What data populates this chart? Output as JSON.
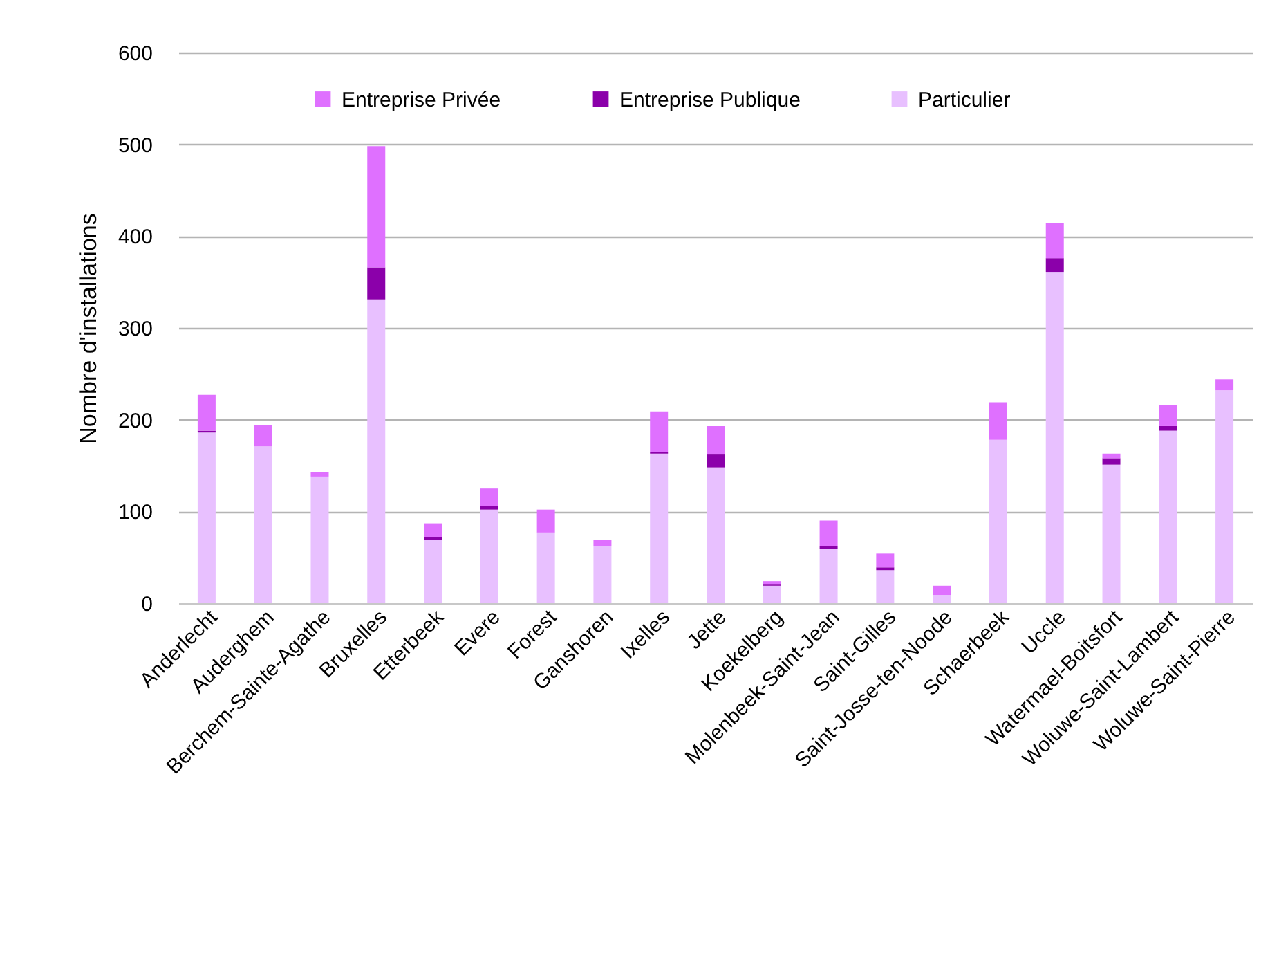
{
  "chart_data": {
    "type": "bar",
    "ylabel": "Nombre d'installations",
    "categories": [
      "Anderlecht",
      "Auderghem",
      "Berchem-Sainte-Agathe",
      "Bruxelles",
      "Etterbeek",
      "Evere",
      "Forest",
      "Ganshoren",
      "Ixelles",
      "Jette",
      "Koekelberg",
      "Molenbeek-Saint-Jean",
      "Saint-Gilles",
      "Saint-Josse-ten-Noode",
      "Schaerbeek",
      "Uccle",
      "Watermael-Boitsfort",
      "Woluwe-Saint-Lambert",
      "Woluwe-Saint-Pierre"
    ],
    "series": [
      {
        "name": "Particulier",
        "color": "#e8c0ff",
        "values": [
          186,
          171,
          138,
          331,
          69,
          102,
          77,
          62,
          163,
          148,
          19,
          59,
          36,
          9,
          178,
          361,
          151,
          188,
          232
        ]
      },
      {
        "name": "Entreprise Publique",
        "color": "#8b00aa",
        "values": [
          2,
          0,
          0,
          35,
          3,
          4,
          0,
          0,
          2,
          14,
          2,
          3,
          3,
          0,
          0,
          15,
          7,
          5,
          0
        ]
      },
      {
        "name": "Entreprise Privée",
        "color": "#df70ff",
        "values": [
          39,
          23,
          5,
          132,
          15,
          19,
          25,
          7,
          44,
          31,
          3,
          28,
          15,
          10,
          41,
          38,
          5,
          23,
          12
        ]
      }
    ],
    "stacked": true,
    "ylim": [
      0,
      600
    ],
    "yticks": [
      0,
      100,
      200,
      300,
      400,
      500,
      600
    ],
    "grid": "y",
    "legend": "top"
  }
}
